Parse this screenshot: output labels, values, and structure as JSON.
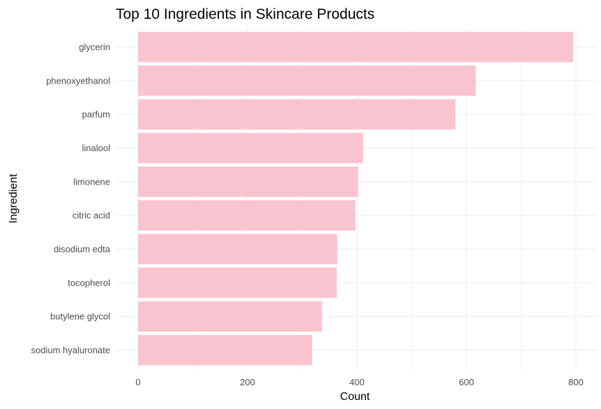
{
  "chart_data": {
    "type": "bar",
    "orientation": "horizontal",
    "title": "Top 10 Ingredients in Skincare Products",
    "xlabel": "Count",
    "ylabel": "Ingredient",
    "categories": [
      "glycerin",
      "phenoxyethanol",
      "parfum",
      "linalool",
      "limonene",
      "citric acid",
      "disodium edta",
      "tocopherol",
      "butylene glycol",
      "sodium hyaluronate"
    ],
    "values": [
      795,
      617,
      580,
      411,
      402,
      397,
      364,
      363,
      336,
      318
    ],
    "xlim": [
      0,
      830
    ],
    "xticks": [
      0,
      200,
      400,
      600,
      800
    ],
    "xtick_labels": [
      "0",
      "200",
      "400",
      "600",
      "800"
    ],
    "bar_color": "#f9c4d0",
    "grid": true,
    "legend": "none"
  }
}
